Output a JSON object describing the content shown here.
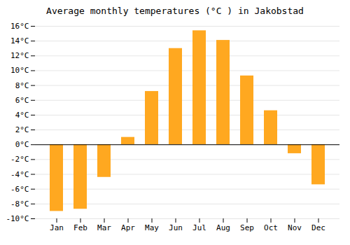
{
  "chart_data": {
    "type": "bar",
    "title": "Average monthly temperatures (°C ) in Jakobstad",
    "categories": [
      "Jan",
      "Feb",
      "Mar",
      "Apr",
      "May",
      "Jun",
      "Jul",
      "Aug",
      "Sep",
      "Oct",
      "Nov",
      "Dec"
    ],
    "values": [
      -9.0,
      -8.7,
      -4.4,
      1.0,
      7.2,
      13.0,
      15.4,
      14.1,
      9.3,
      4.6,
      -1.2,
      -5.4
    ],
    "color": "#FFA820",
    "ylim": [
      -10,
      16
    ],
    "yticks": [
      {
        "value": -10,
        "label": "-10°C"
      },
      {
        "value": -8,
        "label": "-8°C"
      },
      {
        "value": -6,
        "label": "-6°C"
      },
      {
        "value": -4,
        "label": "-4°C"
      },
      {
        "value": -2,
        "label": "-2°C"
      },
      {
        "value": 0,
        "label": "0°C"
      },
      {
        "value": 2,
        "label": "2°C"
      },
      {
        "value": 4,
        "label": "4°C"
      },
      {
        "value": 6,
        "label": "6°C"
      },
      {
        "value": 8,
        "label": "8°C"
      },
      {
        "value": 10,
        "label": "10°C"
      },
      {
        "value": 12,
        "label": "12°C"
      },
      {
        "value": 14,
        "label": "14°C"
      },
      {
        "value": 16,
        "label": "16°C"
      }
    ],
    "grid": true
  }
}
